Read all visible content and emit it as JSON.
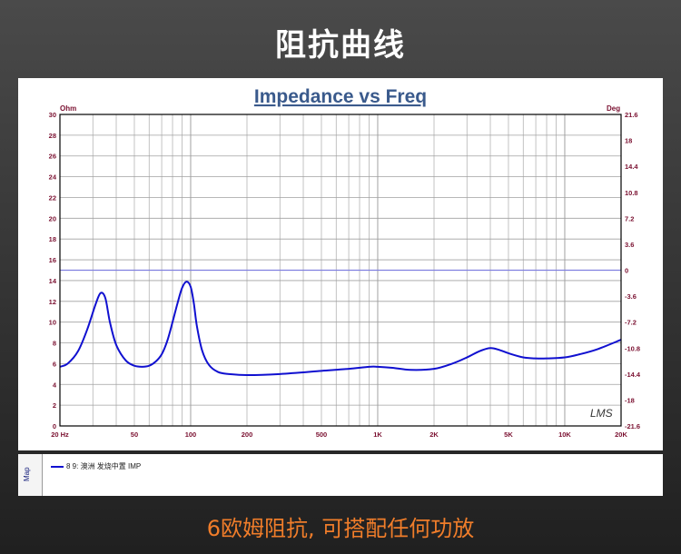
{
  "header": {
    "title": "阻抗曲线"
  },
  "footer": {
    "caption": "6欧姆阻抗, 可搭配任何功放"
  },
  "legend": {
    "tab_label": "Map",
    "entry": "8 9: 澳洲 发烧中置 IMP",
    "line_color": "#1010d0"
  },
  "chart_data": {
    "type": "line",
    "title": "Impedance vs Freq",
    "xlabel": "",
    "ylabel": "Ohm",
    "y2label": "Deg",
    "xscale": "log",
    "xlim": [
      20,
      20000
    ],
    "ylim": [
      0,
      30
    ],
    "y2lim": [
      -21.6,
      21.6
    ],
    "grid": true,
    "watermark": "LMS",
    "x_tick_labels": [
      {
        "value": 20,
        "label": "20 Hz"
      },
      {
        "value": 50,
        "label": "50"
      },
      {
        "value": 100,
        "label": "100"
      },
      {
        "value": 200,
        "label": "200"
      },
      {
        "value": 500,
        "label": "500"
      },
      {
        "value": 1000,
        "label": "1K"
      },
      {
        "value": 2000,
        "label": "2K"
      },
      {
        "value": 5000,
        "label": "5K"
      },
      {
        "value": 10000,
        "label": "10K"
      },
      {
        "value": 20000,
        "label": "20K"
      }
    ],
    "y_ticks": [
      0,
      2,
      4,
      6,
      8,
      10,
      12,
      14,
      16,
      18,
      20,
      22,
      24,
      26,
      28,
      30
    ],
    "y2_ticks": [
      "21.6",
      "18",
      "14.4",
      "10.8",
      "7.2",
      "3.6",
      "0",
      "-3.6",
      "-7.2",
      "-10.8",
      "-14.4",
      "-18",
      "-21.6"
    ],
    "series": [
      {
        "name": "8 9: 澳洲 发烧中置 IMP",
        "color": "#1010d0",
        "x": [
          20,
          22,
          25,
          28,
          31,
          33,
          35,
          37,
          40,
          45,
          50,
          55,
          60,
          65,
          70,
          75,
          80,
          85,
          90,
          95,
          100,
          104,
          108,
          115,
          125,
          140,
          160,
          200,
          300,
          500,
          700,
          900,
          1000,
          1200,
          1500,
          2000,
          2500,
          3000,
          3500,
          4000,
          4500,
          5000,
          6000,
          7000,
          8000,
          10000,
          12000,
          15000,
          20000
        ],
        "y": [
          5.7,
          6.0,
          7.2,
          9.3,
          11.7,
          12.8,
          12.3,
          10.0,
          7.8,
          6.3,
          5.8,
          5.7,
          5.8,
          6.2,
          6.9,
          8.2,
          10.0,
          11.8,
          13.3,
          13.9,
          13.4,
          11.8,
          9.6,
          7.3,
          5.9,
          5.2,
          5.0,
          4.9,
          5.0,
          5.3,
          5.5,
          5.7,
          5.7,
          5.6,
          5.4,
          5.5,
          6.0,
          6.6,
          7.2,
          7.5,
          7.3,
          7.0,
          6.6,
          6.5,
          6.5,
          6.6,
          6.9,
          7.4,
          8.3
        ]
      }
    ],
    "reference_lines": [
      {
        "axis": "y2",
        "value": 0,
        "color": "#8080e0"
      }
    ]
  }
}
